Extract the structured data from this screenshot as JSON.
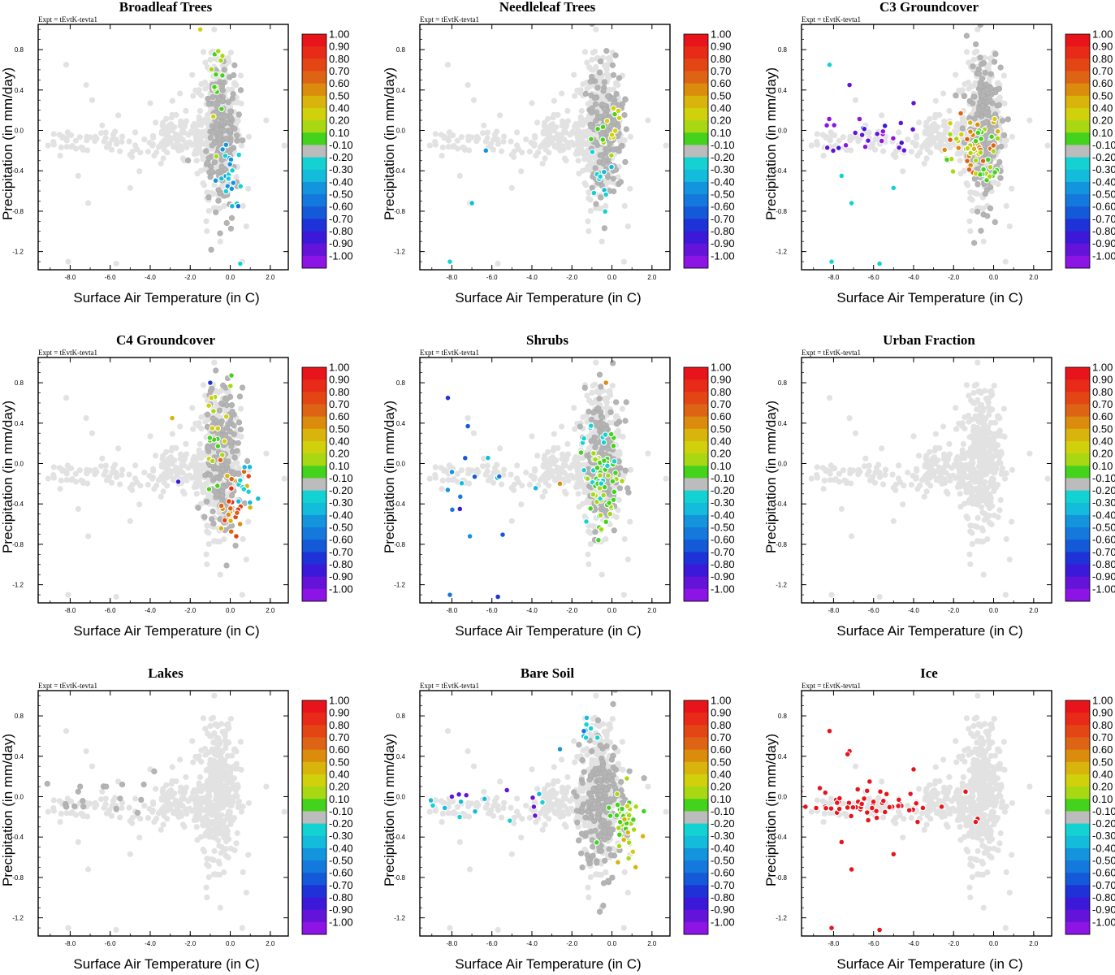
{
  "chart_data": [
    {
      "type": "scatter",
      "title": "Broadleaf Trees",
      "panel_index": 0,
      "highlight": "broadleaf"
    },
    {
      "type": "scatter",
      "title": "Needleleaf Trees",
      "panel_index": 1,
      "highlight": "needleleaf"
    },
    {
      "type": "scatter",
      "title": "C3 Groundcover",
      "panel_index": 2,
      "highlight": "c3"
    },
    {
      "type": "scatter",
      "title": "C4 Groundcover",
      "panel_index": 3,
      "highlight": "c4"
    },
    {
      "type": "scatter",
      "title": "Shrubs",
      "panel_index": 4,
      "highlight": "shrubs"
    },
    {
      "type": "scatter",
      "title": "Urban Fraction",
      "panel_index": 5,
      "highlight": "none"
    },
    {
      "type": "scatter",
      "title": "Lakes",
      "panel_index": 6,
      "highlight": "lakes"
    },
    {
      "type": "scatter",
      "title": "Bare Soil",
      "panel_index": 7,
      "highlight": "bare"
    },
    {
      "type": "scatter",
      "title": "Ice",
      "panel_index": 8,
      "highlight": "ice"
    }
  ],
  "shared": {
    "expt_label": "Expt = tEvtK-tevta1",
    "xlabel": "Surface Air Temperature (in C)",
    "ylabel": "Precipitation (in mm/day)",
    "xlim": [
      -9.6,
      2.9
    ],
    "ylim": [
      -1.38,
      1.05
    ],
    "xticks": [
      -8.0,
      -6.0,
      -4.0,
      -2.0,
      0.0,
      2.0
    ],
    "xtick_labels": [
      "-8.0",
      "-6.0",
      "-4.0",
      "-2.0",
      "0.0",
      "2.0"
    ],
    "yticks": [
      0.8,
      0.4,
      0.0,
      -0.4,
      -0.8,
      -1.2
    ],
    "ytick_labels": [
      "0.8",
      "0.4",
      "0.0",
      "-0.4",
      "-0.8",
      "-1.2"
    ],
    "colorbar_labels": [
      "1.00",
      "0.90",
      "0.80",
      "0.70",
      "0.60",
      "0.50",
      "0.40",
      "0.20",
      "0.10",
      "-0.10",
      "-0.20",
      "-0.30",
      "-0.40",
      "-0.50",
      "-0.60",
      "-0.70",
      "-0.80",
      "-0.90",
      "-1.00"
    ],
    "colorbar_colors": [
      "#e8141c",
      "#e82a18",
      "#e44514",
      "#dc6414",
      "#dc8c0c",
      "#d8b40c",
      "#d0d00c",
      "#a8d814",
      "#44d21c",
      "#bcbcbc",
      "#14d2d2",
      "#14bcdc",
      "#1494dc",
      "#1478dc",
      "#145ad8",
      "#1e32d8",
      "#3c18d8",
      "#6414d8",
      "#8c14e4"
    ],
    "background_point_color": "#e2e2e2",
    "neutral_point_color": "#b4b4b4"
  }
}
